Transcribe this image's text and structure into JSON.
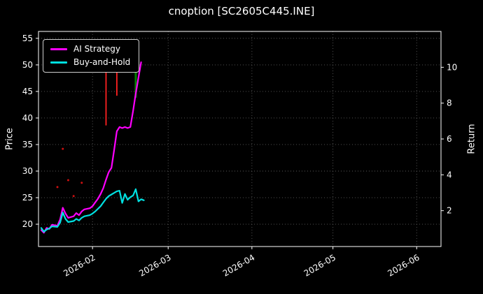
{
  "chart_data": {
    "type": "line",
    "title": "cnoption [SC2605C445.INE]",
    "background_color": "#000000",
    "text_color": "#ffffff",
    "grid": true,
    "grid_style": "dotted",
    "legend": {
      "position": "upper left",
      "items": [
        {
          "label": "AI Strategy",
          "color": "#ff00ff"
        },
        {
          "label": "Buy-and-Hold",
          "color": "#00e0e0"
        }
      ]
    },
    "axes": {
      "x": {
        "min": "2026-01-12",
        "max": "2026-06-10",
        "ticks": [
          {
            "value": "2026-02-01",
            "label": "2026-02"
          },
          {
            "value": "2026-03-01",
            "label": "2026-03"
          },
          {
            "value": "2026-04-01",
            "label": "2026-04"
          },
          {
            "value": "2026-05-01",
            "label": "2026-05"
          },
          {
            "value": "2026-06-01",
            "label": "2026-06"
          }
        ]
      },
      "y_left": {
        "label": "Price",
        "min": 15.8,
        "max": 56.3,
        "ticks": [
          20,
          25,
          30,
          35,
          40,
          45,
          50,
          55
        ]
      },
      "y_right": {
        "label": "Return",
        "min": 0,
        "max": 12,
        "ticks": [
          2,
          4,
          6,
          8,
          10
        ]
      }
    },
    "series": [
      {
        "name": "AI Strategy",
        "color": "#ff00ff",
        "line_width": 2.2,
        "points": [
          [
            "2026-01-13",
            18.9
          ],
          [
            "2026-01-14",
            18.4
          ],
          [
            "2026-01-15",
            19.3
          ],
          [
            "2026-01-16",
            19.1
          ],
          [
            "2026-01-17",
            19.9
          ],
          [
            "2026-01-19",
            19.7
          ],
          [
            "2026-01-20",
            20.9
          ],
          [
            "2026-01-21",
            23.1
          ],
          [
            "2026-01-22",
            22.0
          ],
          [
            "2026-01-23",
            21.2
          ],
          [
            "2026-01-25",
            21.5
          ],
          [
            "2026-01-26",
            22.1
          ],
          [
            "2026-01-27",
            21.7
          ],
          [
            "2026-01-28",
            22.4
          ],
          [
            "2026-01-29",
            22.8
          ],
          [
            "2026-01-31",
            23.0
          ],
          [
            "2026-02-01",
            23.4
          ],
          [
            "2026-02-02",
            24.1
          ],
          [
            "2026-02-03",
            24.8
          ],
          [
            "2026-02-04",
            25.7
          ],
          [
            "2026-02-05",
            26.8
          ],
          [
            "2026-02-06",
            28.4
          ],
          [
            "2026-02-07",
            29.8
          ],
          [
            "2026-02-08",
            30.6
          ],
          [
            "2026-02-09",
            34.0
          ],
          [
            "2026-02-10",
            37.5
          ],
          [
            "2026-02-11",
            38.3
          ],
          [
            "2026-02-12",
            38.1
          ],
          [
            "2026-02-13",
            38.3
          ],
          [
            "2026-02-14",
            38.1
          ],
          [
            "2026-02-15",
            38.3
          ],
          [
            "2026-02-16",
            41.3
          ],
          [
            "2026-02-17",
            44.6
          ],
          [
            "2026-02-18",
            47.6
          ],
          [
            "2026-02-19",
            50.5
          ]
        ]
      },
      {
        "name": "Buy-and-Hold",
        "color": "#00e0e0",
        "line_width": 2.2,
        "points": [
          [
            "2026-01-13",
            19.3
          ],
          [
            "2026-01-14",
            18.6
          ],
          [
            "2026-01-15",
            19.0
          ],
          [
            "2026-01-16",
            19.2
          ],
          [
            "2026-01-17",
            19.6
          ],
          [
            "2026-01-19",
            19.5
          ],
          [
            "2026-01-20",
            20.3
          ],
          [
            "2026-01-21",
            22.2
          ],
          [
            "2026-01-22",
            21.0
          ],
          [
            "2026-01-23",
            20.4
          ],
          [
            "2026-01-25",
            20.6
          ],
          [
            "2026-01-26",
            21.0
          ],
          [
            "2026-01-27",
            20.7
          ],
          [
            "2026-01-28",
            21.2
          ],
          [
            "2026-01-29",
            21.5
          ],
          [
            "2026-01-31",
            21.7
          ],
          [
            "2026-02-01",
            22.0
          ],
          [
            "2026-02-02",
            22.4
          ],
          [
            "2026-02-03",
            22.9
          ],
          [
            "2026-02-04",
            23.4
          ],
          [
            "2026-02-05",
            24.1
          ],
          [
            "2026-02-06",
            24.8
          ],
          [
            "2026-02-07",
            25.3
          ],
          [
            "2026-02-08",
            25.6
          ],
          [
            "2026-02-09",
            25.9
          ],
          [
            "2026-02-10",
            26.2
          ],
          [
            "2026-02-11",
            26.3
          ],
          [
            "2026-02-12",
            24.0
          ],
          [
            "2026-02-13",
            25.7
          ],
          [
            "2026-02-14",
            24.6
          ],
          [
            "2026-02-15",
            25.1
          ],
          [
            "2026-02-16",
            25.4
          ],
          [
            "2026-02-17",
            26.6
          ],
          [
            "2026-02-18",
            24.3
          ],
          [
            "2026-02-19",
            24.7
          ],
          [
            "2026-02-20",
            24.5
          ]
        ]
      }
    ],
    "event_markers": [
      {
        "shape": "vline",
        "color": "#ff2020",
        "x": "2026-02-06",
        "y_from": 38.6,
        "y_to": 53.9,
        "width": 1.8
      },
      {
        "shape": "vline",
        "color": "#ff2020",
        "x": "2026-02-10",
        "y_from": 44.2,
        "y_to": 49.7,
        "width": 1.8
      },
      {
        "shape": "vline",
        "color": "#008000",
        "x": "2026-02-17",
        "y_from": 43.8,
        "y_to": 49.2,
        "width": 3
      }
    ],
    "scatter": {
      "color": "#cc1010",
      "radius": 1.5,
      "points": [
        [
          "2026-01-19",
          27.0
        ],
        [
          "2026-01-21",
          34.2
        ],
        [
          "2026-01-23",
          28.3
        ],
        [
          "2026-01-25",
          25.3
        ],
        [
          "2026-01-28",
          27.8
        ]
      ]
    }
  }
}
